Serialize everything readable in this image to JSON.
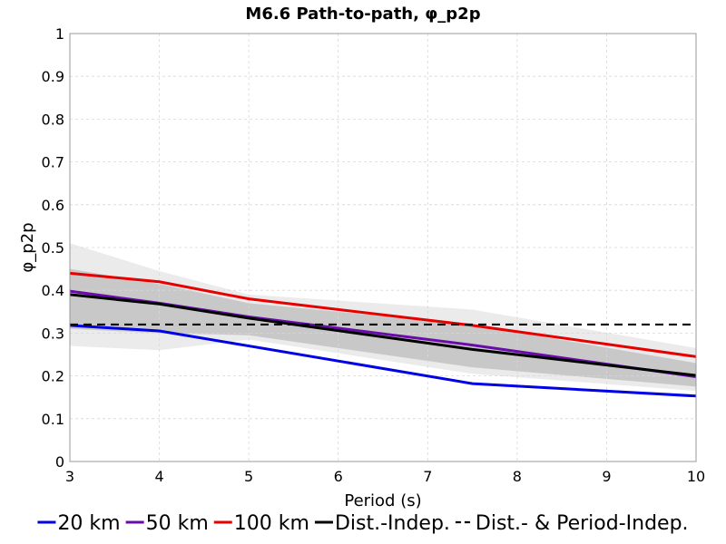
{
  "chart_data": {
    "type": "line",
    "title": "M6.6 Path-to-path, φ_p2p",
    "xlabel": "Period (s)",
    "ylabel": "φ_p2p",
    "xlim": [
      3,
      10
    ],
    "ylim": [
      0,
      1
    ],
    "xticks": [
      3,
      4,
      5,
      6,
      7,
      8,
      9,
      10
    ],
    "yticks": [
      0,
      0.1,
      0.2,
      0.3,
      0.4,
      0.5,
      0.6,
      0.7,
      0.8,
      0.9,
      1
    ],
    "ytick_labels": [
      "0",
      "0.1",
      "0.2",
      "0.3",
      "0.4",
      "0.5",
      "0.6",
      "0.7",
      "0.8",
      "0.9",
      "1"
    ],
    "grid": true,
    "legend_position": "bottom",
    "bands": [
      {
        "color": "#ebebeb",
        "x": [
          3,
          4,
          5,
          7.5,
          10
        ],
        "upper": [
          0.51,
          0.445,
          0.39,
          0.355,
          0.265
        ],
        "lower": [
          0.27,
          0.26,
          0.285,
          0.205,
          0.165
        ]
      },
      {
        "color": "#c8c8c8",
        "x": [
          3,
          4,
          5,
          7.5,
          10
        ],
        "upper": [
          0.45,
          0.415,
          0.37,
          0.32,
          0.23
        ],
        "lower": [
          0.31,
          0.3,
          0.295,
          0.22,
          0.175
        ]
      }
    ],
    "series": [
      {
        "name": "20 km",
        "color": "#0000e6",
        "dash": "solid",
        "x": [
          3,
          4,
          5,
          7.5,
          10
        ],
        "y": [
          0.318,
          0.305,
          0.27,
          0.182,
          0.153
        ]
      },
      {
        "name": "50 km",
        "color": "#6a0aab",
        "dash": "solid",
        "x": [
          3,
          4,
          5,
          7.5,
          10
        ],
        "y": [
          0.398,
          0.37,
          0.338,
          0.272,
          0.198
        ]
      },
      {
        "name": "100 km",
        "color": "#e60000",
        "dash": "solid",
        "x": [
          3,
          4,
          5,
          7.5,
          10
        ],
        "y": [
          0.44,
          0.42,
          0.38,
          0.318,
          0.245
        ]
      },
      {
        "name": "Dist.-Indep.",
        "color": "#000000",
        "dash": "solid",
        "x": [
          3,
          4,
          5,
          7.5,
          10
        ],
        "y": [
          0.39,
          0.368,
          0.335,
          0.262,
          0.201
        ]
      },
      {
        "name": "Dist.- & Period-Indep.",
        "color": "#000000",
        "dash": "dashed",
        "x": [
          3,
          10
        ],
        "y": [
          0.32,
          0.32
        ]
      }
    ]
  }
}
